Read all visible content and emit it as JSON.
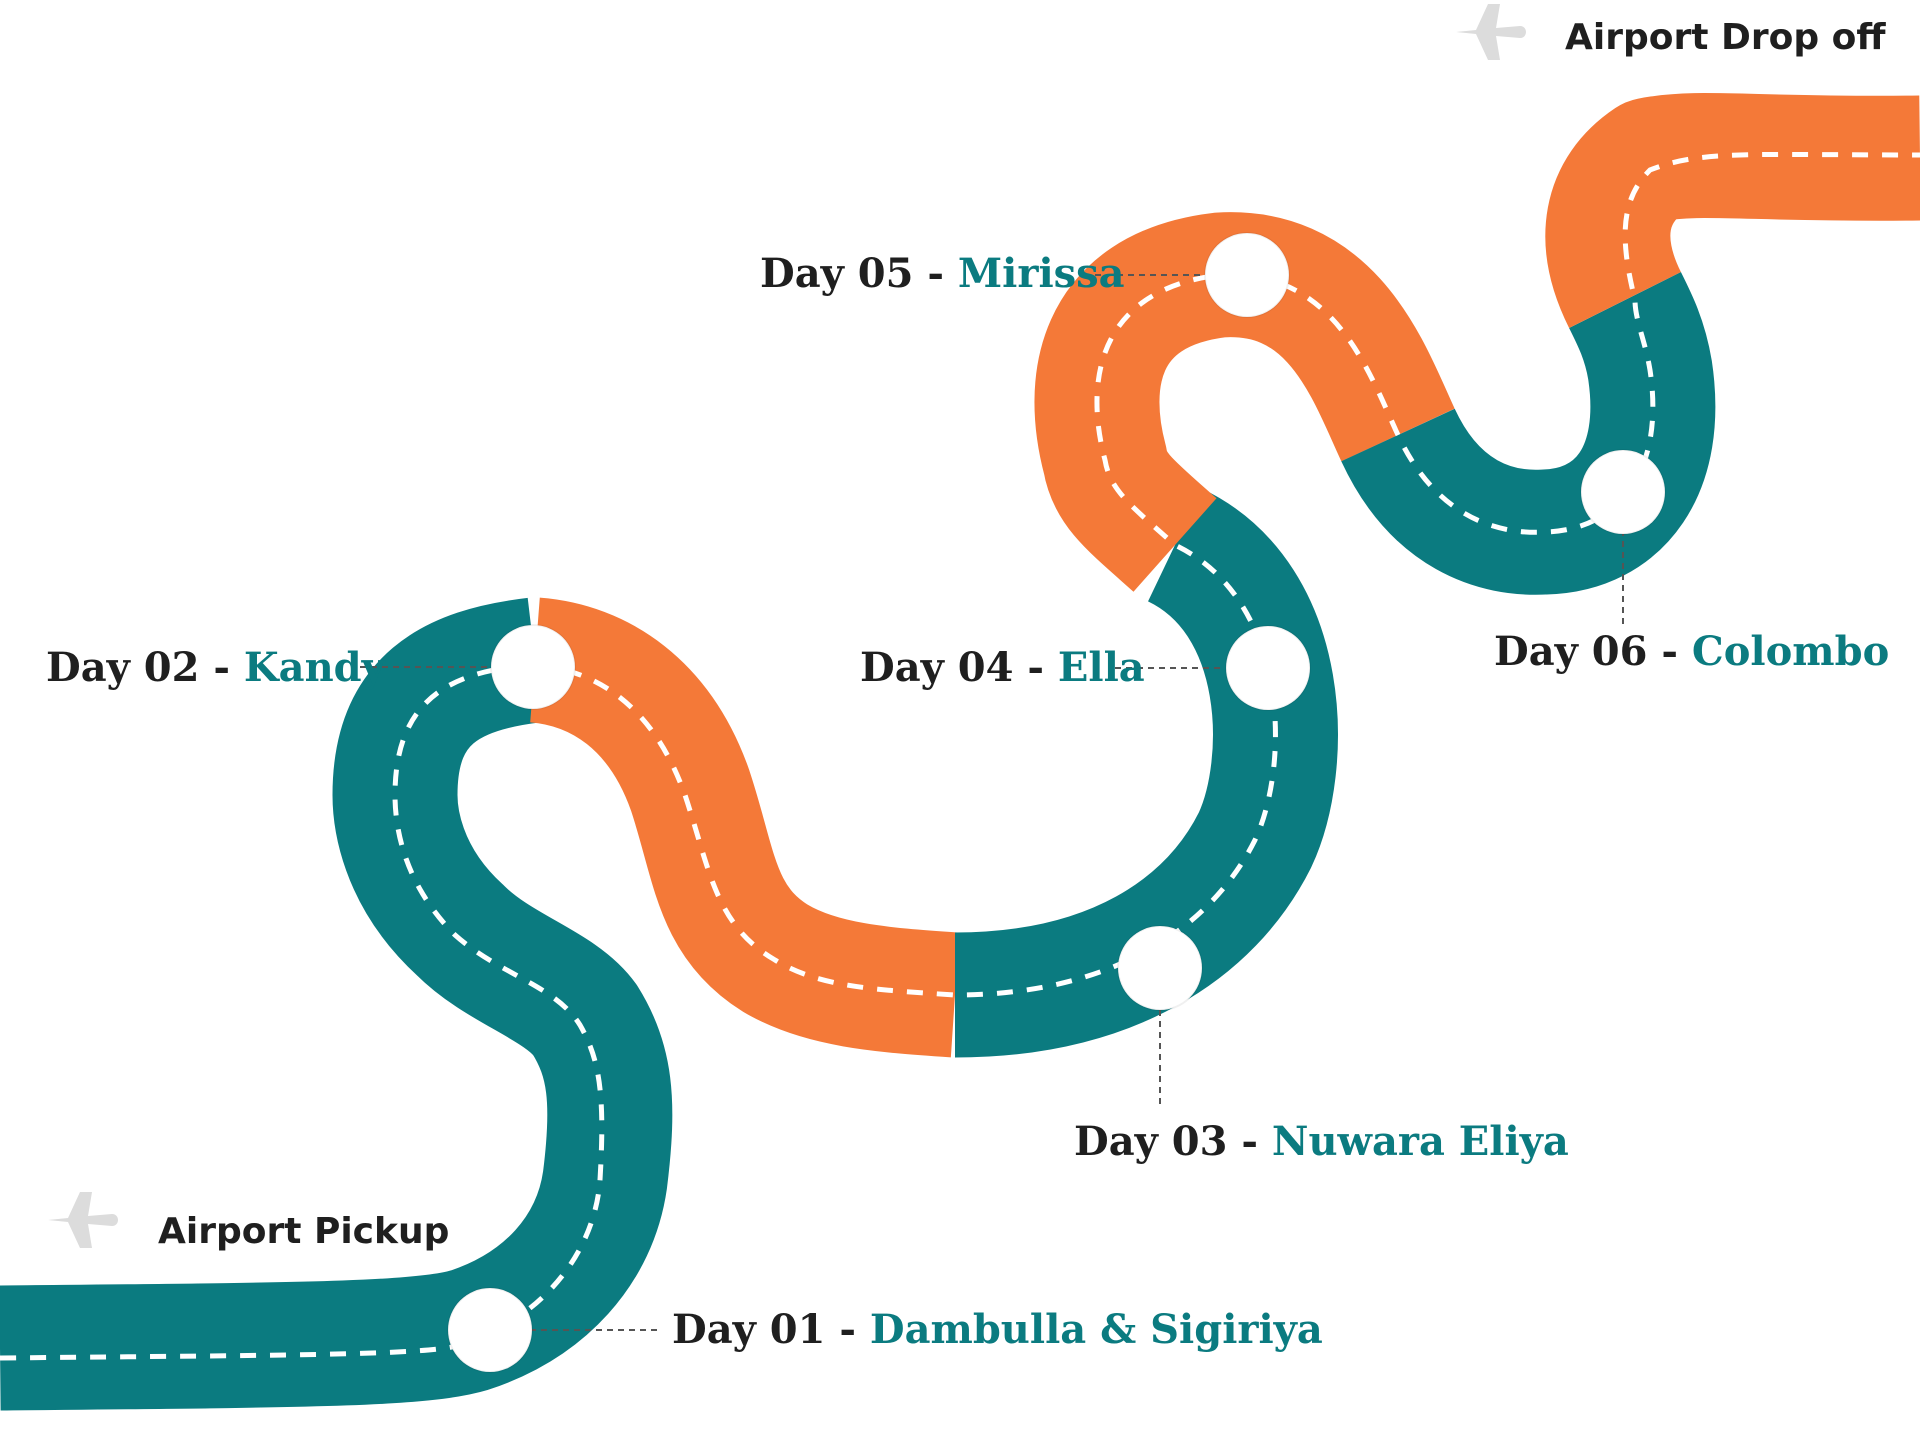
{
  "colors": {
    "teal": "#0b7b80",
    "orange": "#f47938",
    "dash": "#ffffff",
    "text": "#1f1f1f",
    "plane": "#dcdcdc",
    "leader": "#555555"
  },
  "airports": {
    "pickup": {
      "label": "Airport Pickup",
      "icon": "airplane-icon"
    },
    "dropoff": {
      "label": "Airport Drop off",
      "icon": "airplane-icon"
    }
  },
  "stops": [
    {
      "day": "Day 01",
      "sep": " - ",
      "place": "Dambulla & Sigiriya"
    },
    {
      "day": "Day 02",
      "sep": " - ",
      "place": "Kandy"
    },
    {
      "day": "Day 03",
      "sep": " - ",
      "place": "Nuwara Eliya"
    },
    {
      "day": "Day 04",
      "sep": " - ",
      "place": "Ella"
    },
    {
      "day": "Day 05",
      "sep": " - ",
      "place": "Mirissa"
    },
    {
      "day": "Day 06",
      "sep": " - ",
      "place": "Colombo"
    }
  ]
}
